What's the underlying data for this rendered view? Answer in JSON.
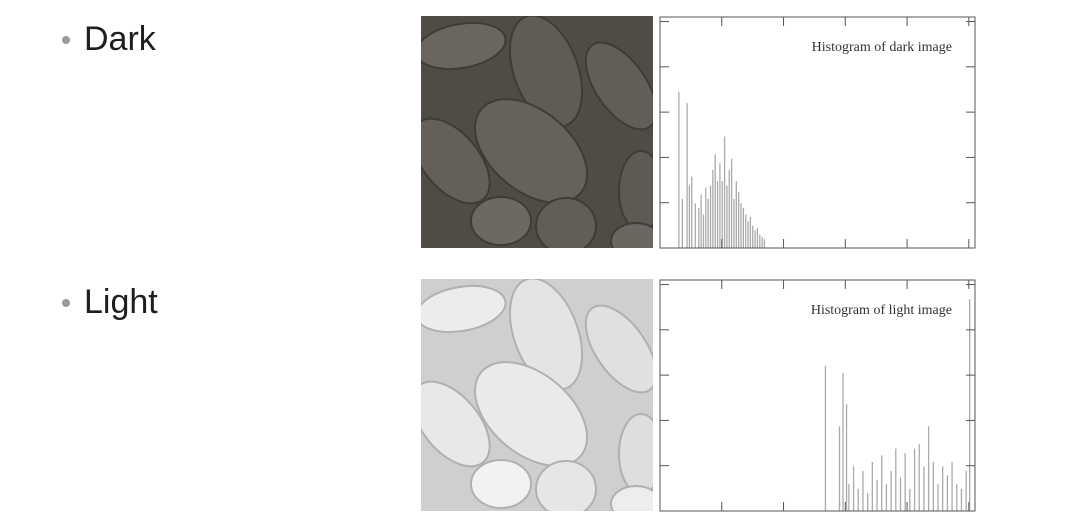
{
  "bullets": [
    {
      "label": "Dark"
    },
    {
      "label": "Light"
    }
  ],
  "colors": {
    "bullet_dot": "#9a9a9a",
    "dark_photo_bg": "#4f4c46",
    "dark_photo_fg": "#6a665f",
    "light_photo_bg": "#cfcfcf",
    "light_photo_fg": "#ececec",
    "histogram_bar": "#aaaaaa",
    "histogram_frame": "#555555"
  },
  "chart_data": [
    {
      "type": "bar",
      "title": "Histogram of dark image",
      "xlim": [
        0,
        255
      ],
      "ylim": [
        0,
        1
      ],
      "x_ticks": 5,
      "y_ticks": 5,
      "x": [
        5,
        8,
        12,
        14,
        16,
        19,
        22,
        24,
        26,
        28,
        30,
        32,
        34,
        36,
        38,
        40,
        42,
        44,
        46,
        48,
        50,
        52,
        54,
        56,
        58,
        60,
        62,
        64,
        66,
        68,
        70,
        72,
        74,
        76,
        78
      ],
      "values": [
        0.7,
        0.22,
        0.65,
        0.28,
        0.32,
        0.2,
        0.18,
        0.24,
        0.15,
        0.27,
        0.22,
        0.28,
        0.35,
        0.42,
        0.3,
        0.38,
        0.3,
        0.5,
        0.28,
        0.35,
        0.4,
        0.22,
        0.3,
        0.25,
        0.2,
        0.18,
        0.15,
        0.12,
        0.14,
        0.1,
        0.08,
        0.09,
        0.06,
        0.05,
        0.04
      ]
    },
    {
      "type": "bar",
      "title": "Histogram of light image",
      "xlim": [
        0,
        255
      ],
      "ylim": [
        0,
        1
      ],
      "x_ticks": 5,
      "y_ticks": 5,
      "x": [
        130,
        142,
        145,
        148,
        150,
        154,
        158,
        162,
        166,
        170,
        174,
        178,
        182,
        186,
        190,
        194,
        198,
        202,
        206,
        210,
        214,
        218,
        222,
        226,
        230,
        234,
        238,
        242,
        246,
        250,
        253
      ],
      "values": [
        0.65,
        0.38,
        0.62,
        0.48,
        0.12,
        0.2,
        0.1,
        0.18,
        0.08,
        0.22,
        0.14,
        0.25,
        0.12,
        0.18,
        0.28,
        0.15,
        0.26,
        0.1,
        0.28,
        0.3,
        0.2,
        0.38,
        0.22,
        0.12,
        0.2,
        0.16,
        0.22,
        0.12,
        0.1,
        0.18,
        0.95
      ]
    }
  ]
}
